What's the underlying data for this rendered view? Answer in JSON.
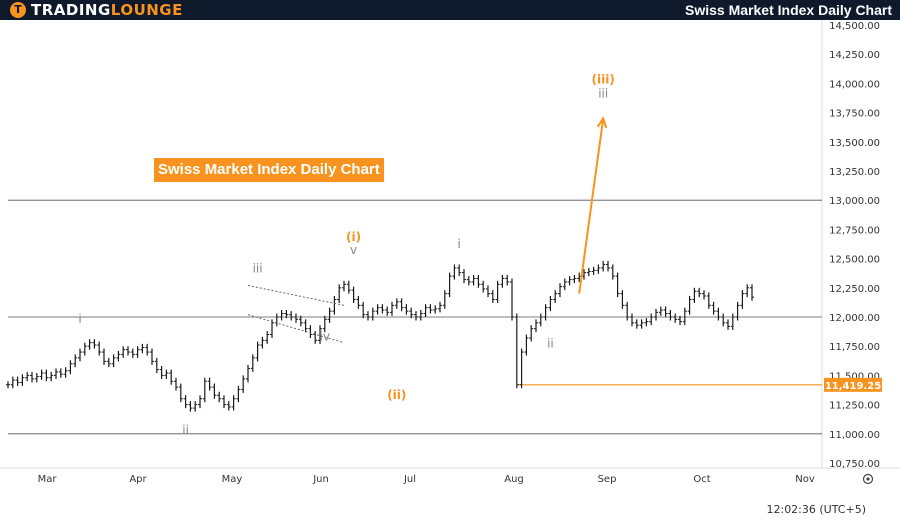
{
  "header": {
    "brand_part1": "TRADING",
    "brand_part2": "LOUNGE",
    "logo_glyph": "T",
    "title": "Swiss Market Index Daily Chart"
  },
  "overlay_title": "Swiss Market Index Daily Chart",
  "clock": "12:02:36 (UTC+5)",
  "icons": [
    "settings-gear-icon"
  ],
  "colors": {
    "accent": "#f7931e",
    "header_bg": "#0e1a2b",
    "price_bar": "#1a1a1a",
    "wave_gray": "#888888"
  },
  "chart_data": {
    "type": "ohlc",
    "title": "Swiss Market Index Daily Chart",
    "x_axis": {
      "tick_labels": [
        "Mar",
        "Apr",
        "May",
        "Jun",
        "Jul",
        "Aug",
        "Sep",
        "Oct",
        "Nov"
      ]
    },
    "y_axis": {
      "position": "right",
      "min": 10750,
      "max": 14500,
      "tick_labels": [
        "14,500.00",
        "14,250.00",
        "14,000.00",
        "13,750.00",
        "13,500.00",
        "13,250.00",
        "13,000.00",
        "12,750.00",
        "12,500.00",
        "12,250.00",
        "12,000.00",
        "11,750.00",
        "11,500.00",
        "11,250.00",
        "11,000.00",
        "10,750.00"
      ]
    },
    "horizontal_lines": [
      {
        "value": 13000,
        "color": "#555555"
      },
      {
        "value": 12000,
        "color": "#555555"
      },
      {
        "value": 11000,
        "color": "#555555"
      },
      {
        "value": 11419.25,
        "color": "#f7931e",
        "label": "11,419.25"
      }
    ],
    "closes": [
      11420,
      11460,
      11440,
      11480,
      11500,
      11470,
      11490,
      11520,
      11480,
      11500,
      11530,
      11510,
      11540,
      11600,
      11650,
      11700,
      11750,
      11780,
      11760,
      11700,
      11620,
      11600,
      11650,
      11680,
      11720,
      11700,
      11680,
      11720,
      11740,
      11700,
      11620,
      11550,
      11500,
      11520,
      11450,
      11400,
      11300,
      11250,
      11220,
      11250,
      11300,
      11450,
      11400,
      11330,
      11300,
      11250,
      11230,
      11300,
      11380,
      11470,
      11560,
      11650,
      11760,
      11800,
      11850,
      11950,
      12000,
      12030,
      12020,
      12000,
      11980,
      11950,
      11900,
      11850,
      11800,
      11900,
      11980,
      12050,
      12150,
      12250,
      12280,
      12230,
      12150,
      12100,
      12020,
      12000,
      12050,
      12080,
      12060,
      12040,
      12100,
      12130,
      12080,
      12050,
      12020,
      12000,
      12030,
      12080,
      12060,
      12070,
      12100,
      12200,
      12350,
      12420,
      12380,
      12320,
      12300,
      12330,
      12280,
      12240,
      12200,
      12150,
      12280,
      12330,
      12300,
      12000,
      11420,
      11700,
      11820,
      11900,
      11950,
      12000,
      12080,
      12150,
      12200,
      12260,
      12300,
      12320,
      12330,
      12350,
      12380,
      12390,
      12400,
      12420,
      12450,
      12420,
      12350,
      12200,
      12100,
      12000,
      11950,
      11930,
      11950,
      11960,
      12000,
      12040,
      12060,
      12030,
      12000,
      11980,
      11960,
      12050,
      12150,
      12220,
      12200,
      12180,
      12100,
      12050,
      12000,
      11950,
      11920,
      12000,
      12100,
      12200,
      12250,
      12170
    ],
    "channel": [
      {
        "x0": 50,
        "y0": 12270,
        "x1": 70,
        "y1": 12100
      },
      {
        "x0": 50,
        "y0": 12020,
        "x1": 70,
        "y1": 11780
      }
    ],
    "wave_labels": [
      {
        "text": "i",
        "index": 15,
        "value": 11950,
        "color": "gray"
      },
      {
        "text": "ii",
        "index": 37,
        "value": 11000,
        "color": "gray"
      },
      {
        "text": "iii",
        "index": 52,
        "value": 12380,
        "color": "gray"
      },
      {
        "text": "iv",
        "index": 66,
        "value": 11800,
        "color": "gray"
      },
      {
        "text": "(i)",
        "index": 72,
        "value": 12650,
        "color": "orange"
      },
      {
        "text": "v",
        "index": 72,
        "value": 12540,
        "color": "gray"
      },
      {
        "text": "(ii)",
        "index": 81,
        "value": 11300,
        "color": "orange"
      },
      {
        "text": "i",
        "index": 94,
        "value": 12590,
        "color": "gray"
      },
      {
        "text": "ii",
        "index": 113,
        "value": 11740,
        "color": "gray"
      },
      {
        "text": "(iii)",
        "index": 124,
        "value": 14000,
        "color": "orange"
      },
      {
        "text": "iii",
        "index": 124,
        "value": 13880,
        "color": "gray"
      }
    ],
    "projection": {
      "from_index": 119,
      "from_value": 12200,
      "to_index": 124,
      "to_value": 13700
    }
  }
}
